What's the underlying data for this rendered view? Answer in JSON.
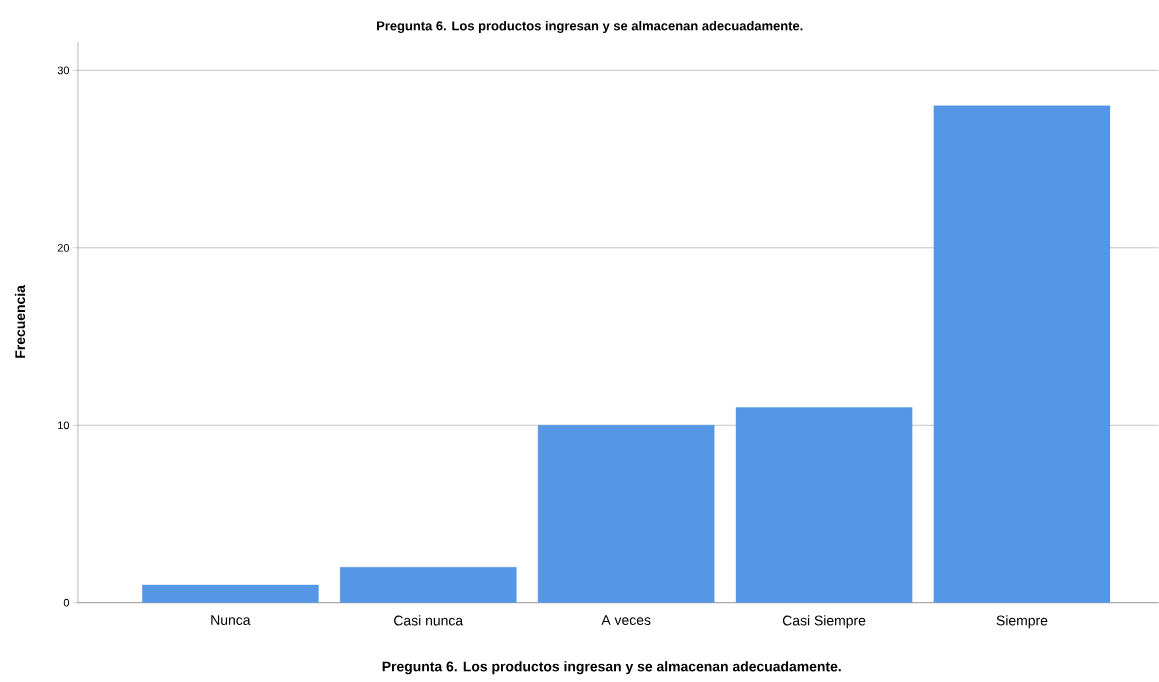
{
  "chart_data": {
    "type": "bar",
    "title": "Pregunta 6. Los productos ingresan y se almacenan adecuadamente.",
    "xlabel": "Pregunta 6. Los productos ingresan y se almacenan adecuadamente.",
    "ylabel": "Frecuencia",
    "categories": [
      "Nunca",
      "Casi nunca",
      "A veces",
      "Casi Siempre",
      "Siempre"
    ],
    "values": [
      1,
      2,
      10,
      11,
      28
    ],
    "color": "#5596e6",
    "ylim": [
      0,
      31.6
    ],
    "yticks": [
      0,
      10,
      20,
      30
    ],
    "grid": "y"
  }
}
